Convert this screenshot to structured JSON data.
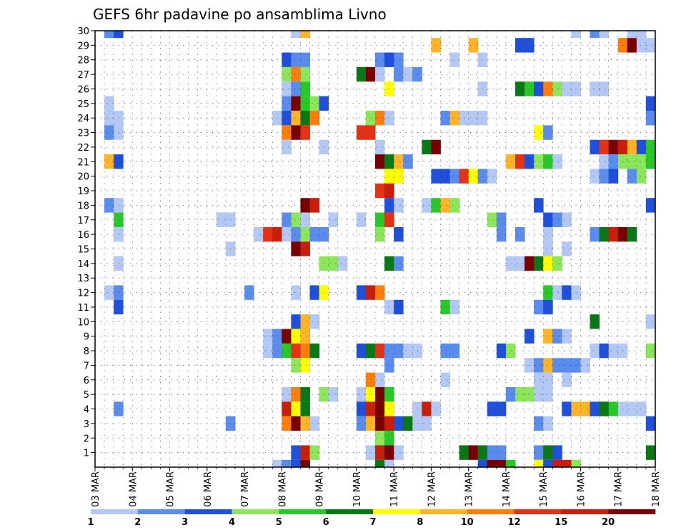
{
  "chart_data": {
    "type": "heatmap",
    "title": "GEFS 6hr padavine po ansamblima Livno",
    "xlabel": "",
    "ylabel": "",
    "x_tick_labels": [
      "03 MAR",
      "04 MAR",
      "05 MAR",
      "06 MAR",
      "07 MAR",
      "08 MAR",
      "09 MAR",
      "10 MAR",
      "11 MAR",
      "12 MAR",
      "13 MAR",
      "14 MAR",
      "15 MAR",
      "16 MAR",
      "17 MAR",
      "18 MAR"
    ],
    "y_tick_labels": [
      "1",
      "2",
      "3",
      "4",
      "5",
      "6",
      "7",
      "8",
      "9",
      "10",
      "11",
      "12",
      "13",
      "14",
      "15",
      "16",
      "17",
      "18",
      "19",
      "20",
      "21",
      "22",
      "23",
      "24",
      "25",
      "26",
      "27",
      "28",
      "29",
      "30"
    ],
    "n_steps": 60,
    "grid": true,
    "colorbar": {
      "position": "bottom",
      "labels": [
        "1",
        "2",
        "3",
        "4",
        "5",
        "6",
        "7",
        "8",
        "10",
        "12",
        "15",
        "20"
      ],
      "colors": [
        "#b4c8f5",
        "#5a8cf0",
        "#1e50dc",
        "#8ce65a",
        "#28c828",
        "#0a7814",
        "#ffff00",
        "#ffb428",
        "#ff7d0a",
        "#e63214",
        "#c81e0a",
        "#780000"
      ]
    },
    "cells": [
      [
        1,
        30,
        1
      ],
      [
        2,
        30,
        2
      ],
      [
        21,
        30,
        0
      ],
      [
        22,
        30,
        7
      ],
      [
        51,
        30,
        0
      ],
      [
        53,
        30,
        1
      ],
      [
        54,
        30,
        0
      ],
      [
        57,
        30,
        0
      ],
      [
        58,
        30,
        0
      ],
      [
        36,
        29,
        7
      ],
      [
        40,
        29,
        7
      ],
      [
        45,
        29,
        2
      ],
      [
        46,
        29,
        2
      ],
      [
        56,
        29,
        8
      ],
      [
        57,
        29,
        11
      ],
      [
        58,
        29,
        0
      ],
      [
        59,
        29,
        0
      ],
      [
        20,
        28,
        2
      ],
      [
        21,
        28,
        1
      ],
      [
        22,
        28,
        1
      ],
      [
        30,
        28,
        1
      ],
      [
        31,
        28,
        2
      ],
      [
        32,
        28,
        1
      ],
      [
        38,
        28,
        0
      ],
      [
        41,
        28,
        0
      ],
      [
        20,
        27,
        3
      ],
      [
        21,
        27,
        8
      ],
      [
        22,
        27,
        3
      ],
      [
        28,
        27,
        5
      ],
      [
        29,
        27,
        11
      ],
      [
        30,
        27,
        0
      ],
      [
        32,
        27,
        1
      ],
      [
        33,
        27,
        0
      ],
      [
        34,
        27,
        1
      ],
      [
        20,
        26,
        0
      ],
      [
        21,
        26,
        1
      ],
      [
        22,
        26,
        4
      ],
      [
        31,
        26,
        6
      ],
      [
        41,
        26,
        0
      ],
      [
        45,
        26,
        5
      ],
      [
        46,
        26,
        4
      ],
      [
        47,
        26,
        2
      ],
      [
        48,
        26,
        8
      ],
      [
        49,
        26,
        3
      ],
      [
        50,
        26,
        0
      ],
      [
        51,
        26,
        0
      ],
      [
        53,
        26,
        0
      ],
      [
        54,
        26,
        0
      ],
      [
        1,
        25,
        0
      ],
      [
        20,
        25,
        1
      ],
      [
        21,
        25,
        11
      ],
      [
        22,
        25,
        4
      ],
      [
        23,
        25,
        3
      ],
      [
        24,
        25,
        2
      ],
      [
        59,
        25,
        2
      ],
      [
        1,
        24,
        0
      ],
      [
        2,
        24,
        0
      ],
      [
        19,
        24,
        0
      ],
      [
        20,
        24,
        2
      ],
      [
        21,
        24,
        7
      ],
      [
        22,
        24,
        5
      ],
      [
        23,
        24,
        8
      ],
      [
        29,
        24,
        3
      ],
      [
        30,
        24,
        8
      ],
      [
        31,
        24,
        0
      ],
      [
        37,
        24,
        1
      ],
      [
        38,
        24,
        7
      ],
      [
        39,
        24,
        0
      ],
      [
        40,
        24,
        0
      ],
      [
        41,
        24,
        0
      ],
      [
        59,
        24,
        1
      ],
      [
        1,
        23,
        1
      ],
      [
        2,
        23,
        0
      ],
      [
        20,
        23,
        8
      ],
      [
        21,
        23,
        11
      ],
      [
        22,
        23,
        9
      ],
      [
        28,
        23,
        9
      ],
      [
        29,
        23,
        9
      ],
      [
        47,
        23,
        6
      ],
      [
        48,
        23,
        1
      ],
      [
        20,
        22,
        0
      ],
      [
        24,
        22,
        0
      ],
      [
        30,
        22,
        0
      ],
      [
        35,
        22,
        5
      ],
      [
        36,
        22,
        11
      ],
      [
        53,
        22,
        2
      ],
      [
        54,
        22,
        9
      ],
      [
        55,
        22,
        11
      ],
      [
        56,
        22,
        10
      ],
      [
        57,
        22,
        7
      ],
      [
        58,
        22,
        2
      ],
      [
        59,
        22,
        4
      ],
      [
        1,
        21,
        7
      ],
      [
        2,
        21,
        2
      ],
      [
        30,
        21,
        11
      ],
      [
        31,
        21,
        5
      ],
      [
        32,
        21,
        7
      ],
      [
        33,
        21,
        1
      ],
      [
        44,
        21,
        7
      ],
      [
        45,
        21,
        9
      ],
      [
        46,
        21,
        2
      ],
      [
        47,
        21,
        3
      ],
      [
        48,
        21,
        4
      ],
      [
        49,
        21,
        0
      ],
      [
        54,
        21,
        0
      ],
      [
        55,
        21,
        1
      ],
      [
        56,
        21,
        3
      ],
      [
        57,
        21,
        3
      ],
      [
        58,
        21,
        3
      ],
      [
        59,
        21,
        4
      ],
      [
        31,
        20,
        6
      ],
      [
        32,
        20,
        6
      ],
      [
        36,
        20,
        2
      ],
      [
        37,
        20,
        2
      ],
      [
        38,
        20,
        1
      ],
      [
        39,
        20,
        9
      ],
      [
        40,
        20,
        6
      ],
      [
        41,
        20,
        1
      ],
      [
        42,
        20,
        0
      ],
      [
        53,
        20,
        0
      ],
      [
        54,
        20,
        1
      ],
      [
        55,
        20,
        2
      ],
      [
        57,
        20,
        1
      ],
      [
        58,
        20,
        3
      ],
      [
        30,
        19,
        9
      ],
      [
        31,
        19,
        10
      ],
      [
        1,
        18,
        1
      ],
      [
        2,
        18,
        0
      ],
      [
        22,
        18,
        11
      ],
      [
        23,
        18,
        10
      ],
      [
        31,
        18,
        2
      ],
      [
        32,
        18,
        0
      ],
      [
        35,
        18,
        0
      ],
      [
        36,
        18,
        4
      ],
      [
        37,
        18,
        7
      ],
      [
        38,
        18,
        3
      ],
      [
        47,
        18,
        2
      ],
      [
        59,
        18,
        2
      ],
      [
        2,
        17,
        4
      ],
      [
        13,
        17,
        0
      ],
      [
        14,
        17,
        0
      ],
      [
        20,
        17,
        1
      ],
      [
        21,
        17,
        3
      ],
      [
        22,
        17,
        0
      ],
      [
        25,
        17,
        0
      ],
      [
        28,
        17,
        0
      ],
      [
        30,
        17,
        4
      ],
      [
        31,
        17,
        9
      ],
      [
        42,
        17,
        3
      ],
      [
        43,
        17,
        1
      ],
      [
        48,
        17,
        2
      ],
      [
        49,
        17,
        1
      ],
      [
        50,
        17,
        0
      ],
      [
        2,
        16,
        0
      ],
      [
        17,
        16,
        0
      ],
      [
        18,
        16,
        9
      ],
      [
        19,
        16,
        10
      ],
      [
        20,
        16,
        0
      ],
      [
        21,
        16,
        1
      ],
      [
        22,
        16,
        3
      ],
      [
        23,
        16,
        1
      ],
      [
        24,
        16,
        1
      ],
      [
        30,
        16,
        3
      ],
      [
        32,
        16,
        2
      ],
      [
        43,
        16,
        1
      ],
      [
        45,
        16,
        1
      ],
      [
        48,
        16,
        0
      ],
      [
        53,
        16,
        1
      ],
      [
        54,
        16,
        5
      ],
      [
        55,
        16,
        10
      ],
      [
        56,
        16,
        11
      ],
      [
        57,
        16,
        5
      ],
      [
        14,
        15,
        0
      ],
      [
        21,
        15,
        11
      ],
      [
        22,
        15,
        10
      ],
      [
        48,
        15,
        0
      ],
      [
        50,
        15,
        0
      ],
      [
        2,
        14,
        0
      ],
      [
        24,
        14,
        3
      ],
      [
        25,
        14,
        3
      ],
      [
        26,
        14,
        0
      ],
      [
        31,
        14,
        5
      ],
      [
        32,
        14,
        1
      ],
      [
        44,
        14,
        0
      ],
      [
        45,
        14,
        0
      ],
      [
        46,
        14,
        11
      ],
      [
        47,
        14,
        5
      ],
      [
        48,
        14,
        6
      ],
      [
        49,
        14,
        3
      ],
      [
        1,
        12,
        0
      ],
      [
        2,
        12,
        1
      ],
      [
        16,
        12,
        1
      ],
      [
        21,
        12,
        0
      ],
      [
        23,
        12,
        2
      ],
      [
        24,
        12,
        6
      ],
      [
        28,
        12,
        2
      ],
      [
        29,
        12,
        10
      ],
      [
        30,
        12,
        8
      ],
      [
        48,
        12,
        4
      ],
      [
        49,
        12,
        0
      ],
      [
        50,
        12,
        2
      ],
      [
        51,
        12,
        0
      ],
      [
        2,
        11,
        2
      ],
      [
        31,
        11,
        0
      ],
      [
        32,
        11,
        2
      ],
      [
        37,
        11,
        4
      ],
      [
        38,
        11,
        0
      ],
      [
        47,
        11,
        1
      ],
      [
        48,
        11,
        2
      ],
      [
        21,
        10,
        2
      ],
      [
        22,
        10,
        7
      ],
      [
        23,
        10,
        0
      ],
      [
        53,
        10,
        5
      ],
      [
        59,
        10,
        0
      ],
      [
        18,
        9,
        0
      ],
      [
        19,
        9,
        1
      ],
      [
        20,
        9,
        11
      ],
      [
        21,
        9,
        6
      ],
      [
        22,
        9,
        7
      ],
      [
        46,
        9,
        2
      ],
      [
        48,
        9,
        7
      ],
      [
        49,
        9,
        1
      ],
      [
        50,
        9,
        0
      ],
      [
        18,
        8,
        0
      ],
      [
        19,
        8,
        1
      ],
      [
        20,
        8,
        4
      ],
      [
        21,
        8,
        9
      ],
      [
        22,
        8,
        8
      ],
      [
        23,
        8,
        5
      ],
      [
        28,
        8,
        2
      ],
      [
        29,
        8,
        5
      ],
      [
        30,
        8,
        9
      ],
      [
        31,
        8,
        1
      ],
      [
        32,
        8,
        1
      ],
      [
        33,
        8,
        0
      ],
      [
        34,
        8,
        0
      ],
      [
        37,
        8,
        1
      ],
      [
        38,
        8,
        1
      ],
      [
        43,
        8,
        2
      ],
      [
        44,
        8,
        3
      ],
      [
        53,
        8,
        0
      ],
      [
        54,
        8,
        2
      ],
      [
        55,
        8,
        0
      ],
      [
        56,
        8,
        0
      ],
      [
        59,
        8,
        3
      ],
      [
        21,
        7,
        3
      ],
      [
        22,
        7,
        6
      ],
      [
        31,
        7,
        1
      ],
      [
        46,
        7,
        0
      ],
      [
        47,
        7,
        1
      ],
      [
        48,
        7,
        7
      ],
      [
        49,
        7,
        1
      ],
      [
        50,
        7,
        1
      ],
      [
        51,
        7,
        1
      ],
      [
        52,
        7,
        0
      ],
      [
        29,
        6,
        8
      ],
      [
        30,
        6,
        0
      ],
      [
        37,
        6,
        0
      ],
      [
        47,
        6,
        0
      ],
      [
        48,
        6,
        0
      ],
      [
        50,
        6,
        0
      ],
      [
        20,
        5,
        0
      ],
      [
        21,
        5,
        8
      ],
      [
        22,
        5,
        5
      ],
      [
        24,
        5,
        3
      ],
      [
        25,
        5,
        0
      ],
      [
        28,
        5,
        0
      ],
      [
        29,
        5,
        6
      ],
      [
        30,
        5,
        11
      ],
      [
        31,
        5,
        4
      ],
      [
        44,
        5,
        1
      ],
      [
        45,
        5,
        3
      ],
      [
        46,
        5,
        3
      ],
      [
        47,
        5,
        0
      ],
      [
        48,
        5,
        0
      ],
      [
        2,
        4,
        1
      ],
      [
        20,
        4,
        10
      ],
      [
        21,
        4,
        6
      ],
      [
        22,
        4,
        5
      ],
      [
        28,
        4,
        2
      ],
      [
        29,
        4,
        10
      ],
      [
        30,
        4,
        11
      ],
      [
        31,
        4,
        6
      ],
      [
        34,
        4,
        0
      ],
      [
        35,
        4,
        10
      ],
      [
        36,
        4,
        0
      ],
      [
        42,
        4,
        2
      ],
      [
        43,
        4,
        2
      ],
      [
        50,
        4,
        2
      ],
      [
        51,
        4,
        7
      ],
      [
        52,
        4,
        7
      ],
      [
        53,
        4,
        2
      ],
      [
        54,
        4,
        5
      ],
      [
        55,
        4,
        4
      ],
      [
        56,
        4,
        0
      ],
      [
        57,
        4,
        0
      ],
      [
        58,
        4,
        0
      ],
      [
        14,
        3,
        1
      ],
      [
        20,
        3,
        8
      ],
      [
        21,
        3,
        11
      ],
      [
        22,
        3,
        7
      ],
      [
        23,
        3,
        0
      ],
      [
        28,
        3,
        1
      ],
      [
        29,
        3,
        7
      ],
      [
        30,
        3,
        11
      ],
      [
        31,
        3,
        10
      ],
      [
        32,
        3,
        2
      ],
      [
        33,
        3,
        5
      ],
      [
        34,
        3,
        0
      ],
      [
        35,
        3,
        0
      ],
      [
        47,
        3,
        1
      ],
      [
        48,
        3,
        0
      ],
      [
        59,
        3,
        2
      ],
      [
        30,
        2,
        3
      ],
      [
        31,
        2,
        4
      ],
      [
        21,
        1,
        2
      ],
      [
        22,
        1,
        10
      ],
      [
        23,
        1,
        3
      ],
      [
        29,
        1,
        0
      ],
      [
        30,
        1,
        10
      ],
      [
        31,
        1,
        11
      ],
      [
        32,
        1,
        0
      ],
      [
        39,
        1,
        5
      ],
      [
        40,
        1,
        11
      ],
      [
        41,
        1,
        5
      ],
      [
        42,
        1,
        1
      ],
      [
        43,
        1,
        1
      ],
      [
        47,
        1,
        1
      ],
      [
        48,
        1,
        5
      ],
      [
        49,
        1,
        2
      ],
      [
        59,
        1,
        5
      ],
      [
        19,
        0,
        0
      ],
      [
        20,
        0,
        1
      ],
      [
        21,
        0,
        2
      ],
      [
        22,
        0,
        11
      ],
      [
        30,
        0,
        5
      ],
      [
        31,
        0,
        0
      ],
      [
        41,
        0,
        2
      ],
      [
        42,
        0,
        11
      ],
      [
        43,
        0,
        11
      ],
      [
        44,
        0,
        4
      ],
      [
        47,
        0,
        6
      ],
      [
        48,
        0,
        2
      ],
      [
        49,
        0,
        10
      ],
      [
        50,
        0,
        10
      ],
      [
        51,
        0,
        3
      ]
    ]
  }
}
